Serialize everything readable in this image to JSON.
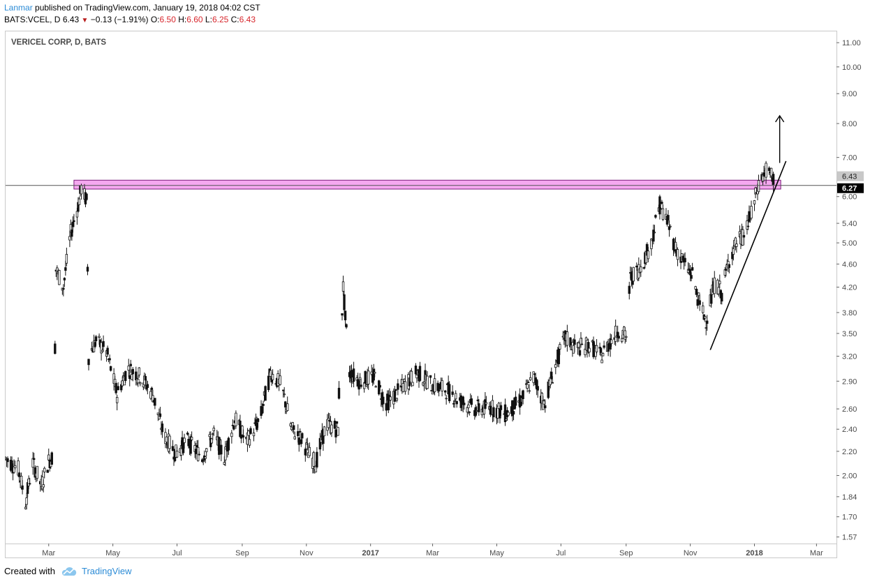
{
  "header": {
    "author": "Lanmar",
    "published_text": "published on TradingView.com, January 19, 2018 04:02 CST",
    "symbol": "BATS:VCEL, D",
    "last": "6.43",
    "change": "−0.13 (−1.91%)",
    "open_label": "O:",
    "open": "6.50",
    "high_label": "H:",
    "high": "6.60",
    "low_label": "L:",
    "low": "6.25",
    "close_label": "C:",
    "close": "6.43"
  },
  "chart_data": {
    "type": "candlestick",
    "title": "VERICEL CORP, D, BATS",
    "y_axis": {
      "scale": "log",
      "range": [
        1.53,
        11.5
      ],
      "ticks": [
        "11.00",
        "10.00",
        "9.00",
        "8.00",
        "7.00",
        "6.00",
        "5.40",
        "5.00",
        "4.60",
        "4.20",
        "3.80",
        "3.50",
        "3.20",
        "2.90",
        "2.60",
        "2.40",
        "2.20",
        "2.00",
        "1.84",
        "1.70",
        "1.57"
      ],
      "price_labels": [
        {
          "text": "6.43",
          "value": 6.43,
          "style": "last"
        },
        {
          "text": "6.27",
          "value": 6.27,
          "style": "crosshair"
        }
      ]
    },
    "x_axis": {
      "range": [
        "2016-01-20",
        "2018-03-20"
      ],
      "ticks": [
        {
          "label": "Mar",
          "date": "2016-03-01",
          "bold": false
        },
        {
          "label": "May",
          "date": "2016-05-01",
          "bold": false
        },
        {
          "label": "Jul",
          "date": "2016-07-01",
          "bold": false
        },
        {
          "label": "Sep",
          "date": "2016-09-01",
          "bold": false
        },
        {
          "label": "Nov",
          "date": "2016-11-01",
          "bold": false
        },
        {
          "label": "2017",
          "date": "2017-01-01",
          "bold": true
        },
        {
          "label": "Mar",
          "date": "2017-03-01",
          "bold": false
        },
        {
          "label": "May",
          "date": "2017-05-01",
          "bold": false
        },
        {
          "label": "Jul",
          "date": "2017-07-01",
          "bold": false
        },
        {
          "label": "Sep",
          "date": "2017-09-01",
          "bold": false
        },
        {
          "label": "Nov",
          "date": "2017-11-01",
          "bold": false
        },
        {
          "label": "2018",
          "date": "2018-01-01",
          "bold": true
        },
        {
          "label": "Mar",
          "date": "2018-03-01",
          "bold": false
        }
      ]
    },
    "price_path": [
      [
        "2016-01-20",
        2.14
      ],
      [
        "2016-02-01",
        2.05
      ],
      [
        "2016-02-08",
        1.8
      ],
      [
        "2016-02-15",
        2.1
      ],
      [
        "2016-02-23",
        1.92
      ],
      [
        "2016-03-01",
        2.12
      ],
      [
        "2016-03-06",
        2.16
      ],
      [
        "2016-03-08",
        4.5
      ],
      [
        "2016-03-15",
        4.2
      ],
      [
        "2016-03-22",
        5.2
      ],
      [
        "2016-03-29",
        5.8
      ],
      [
        "2016-04-01",
        6.2
      ],
      [
        "2016-04-06",
        5.9
      ],
      [
        "2016-04-08",
        3.2
      ],
      [
        "2016-04-15",
        3.4
      ],
      [
        "2016-04-25",
        3.25
      ],
      [
        "2016-05-05",
        2.75
      ],
      [
        "2016-05-15",
        3.05
      ],
      [
        "2016-05-28",
        2.95
      ],
      [
        "2016-06-08",
        2.75
      ],
      [
        "2016-06-18",
        2.35
      ],
      [
        "2016-06-30",
        2.18
      ],
      [
        "2016-07-10",
        2.3
      ],
      [
        "2016-07-25",
        2.15
      ],
      [
        "2016-08-05",
        2.35
      ],
      [
        "2016-08-15",
        2.15
      ],
      [
        "2016-08-25",
        2.5
      ],
      [
        "2016-09-05",
        2.28
      ],
      [
        "2016-09-18",
        2.5
      ],
      [
        "2016-09-28",
        3.0
      ],
      [
        "2016-10-08",
        2.85
      ],
      [
        "2016-10-18",
        2.4
      ],
      [
        "2016-10-28",
        2.3
      ],
      [
        "2016-11-05",
        2.15
      ],
      [
        "2016-11-10",
        2.1
      ],
      [
        "2016-11-20",
        2.45
      ],
      [
        "2016-12-01",
        2.4
      ],
      [
        "2016-12-06",
        4.2
      ],
      [
        "2016-12-08",
        3.7
      ],
      [
        "2016-12-12",
        3.0
      ],
      [
        "2016-12-22",
        2.9
      ],
      [
        "2017-01-05",
        2.95
      ],
      [
        "2017-01-15",
        2.65
      ],
      [
        "2017-01-25",
        2.75
      ],
      [
        "2017-02-05",
        2.9
      ],
      [
        "2017-02-15",
        3.0
      ],
      [
        "2017-03-01",
        2.85
      ],
      [
        "2017-03-15",
        2.8
      ],
      [
        "2017-03-25",
        2.7
      ],
      [
        "2017-04-10",
        2.6
      ],
      [
        "2017-04-25",
        2.62
      ],
      [
        "2017-05-10",
        2.55
      ],
      [
        "2017-05-25",
        2.7
      ],
      [
        "2017-06-05",
        2.95
      ],
      [
        "2017-06-15",
        2.65
      ],
      [
        "2017-06-25",
        3.05
      ],
      [
        "2017-07-05",
        3.45
      ],
      [
        "2017-07-15",
        3.3
      ],
      [
        "2017-07-28",
        3.35
      ],
      [
        "2017-08-08",
        3.2
      ],
      [
        "2017-08-15",
        3.35
      ],
      [
        "2017-08-25",
        3.55
      ],
      [
        "2017-09-01",
        3.45
      ],
      [
        "2017-09-05",
        4.35
      ],
      [
        "2017-09-15",
        4.55
      ],
      [
        "2017-09-25",
        5.0
      ],
      [
        "2017-10-03",
        5.8
      ],
      [
        "2017-10-08",
        5.6
      ],
      [
        "2017-10-18",
        4.9
      ],
      [
        "2017-10-28",
        4.55
      ],
      [
        "2017-11-03",
        4.4
      ],
      [
        "2017-11-10",
        3.9
      ],
      [
        "2017-11-16",
        3.7
      ],
      [
        "2017-11-25",
        4.3
      ],
      [
        "2017-12-01",
        4.1
      ],
      [
        "2017-12-08",
        4.7
      ],
      [
        "2017-12-15",
        5.0
      ],
      [
        "2017-12-22",
        5.15
      ],
      [
        "2017-12-29",
        5.6
      ],
      [
        "2018-01-05",
        6.3
      ],
      [
        "2018-01-12",
        6.65
      ],
      [
        "2018-01-19",
        6.43
      ]
    ],
    "annotations": {
      "resistance_zone": {
        "from": "2016-03-25",
        "to": "2018-01-26",
        "low": 6.18,
        "high": 6.4,
        "color": "#f5a8f0",
        "border": "#7a1a7a"
      },
      "horizontal_line": {
        "value": 6.27,
        "color": "#555555"
      },
      "trendline": {
        "from": [
          "2017-11-20",
          3.28
        ],
        "to": [
          "2018-01-31",
          6.9
        ]
      },
      "arrow": {
        "x": "2018-01-25",
        "from": 6.85,
        "to": 8.25
      }
    }
  },
  "footer": {
    "prefix": "Created with",
    "brand": "TradingView",
    "logo_icon": "tradingview-cloud-icon"
  },
  "colors": {
    "accent": "#2b8bd6",
    "down_red": "#d7262c",
    "zone_fill": "#f5a8f0"
  }
}
